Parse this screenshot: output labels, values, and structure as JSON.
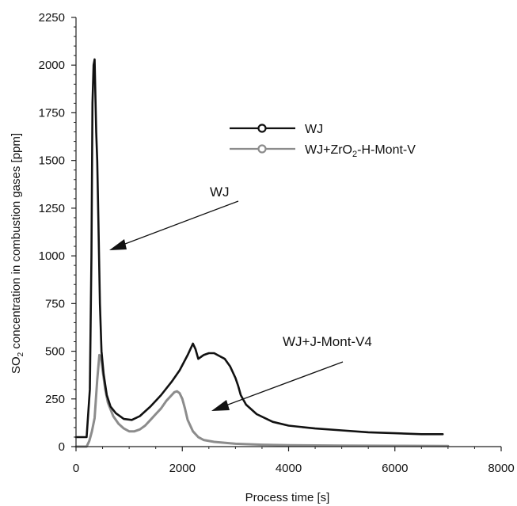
{
  "chart_data": {
    "type": "line",
    "title": "",
    "xlabel": "Process time [s]",
    "ylabel_parts": [
      "SO",
      "2",
      " concentration in combustion gases [ppm]"
    ],
    "xlim": [
      0,
      8000
    ],
    "ylim": [
      0,
      2250
    ],
    "xticks": [
      0,
      2000,
      4000,
      6000,
      8000
    ],
    "yticks": [
      0,
      250,
      500,
      750,
      1000,
      1250,
      1500,
      1750,
      2000,
      2250
    ],
    "grid": false,
    "legend_position": "top-right",
    "series": [
      {
        "name": "WJ",
        "legend_parts": [
          "WJ"
        ],
        "color": "#111111",
        "x": [
          0,
          200,
          260,
          290,
          310,
          330,
          350,
          380,
          400,
          420,
          450,
          480,
          520,
          580,
          650,
          750,
          900,
          1050,
          1200,
          1400,
          1600,
          1800,
          1950,
          2100,
          2200,
          2250,
          2300,
          2400,
          2500,
          2600,
          2700,
          2800,
          2900,
          3000,
          3050,
          3100,
          3200,
          3400,
          3700,
          4000,
          4500,
          5000,
          5500,
          6000,
          6500,
          6900
        ],
        "y": [
          50,
          50,
          300,
          1000,
          1800,
          2000,
          2030,
          1650,
          1500,
          1200,
          750,
          500,
          380,
          270,
          210,
          175,
          145,
          140,
          160,
          210,
          270,
          340,
          400,
          480,
          540,
          510,
          460,
          480,
          490,
          490,
          475,
          460,
          420,
          360,
          320,
          270,
          220,
          170,
          130,
          110,
          95,
          85,
          75,
          70,
          65,
          65
        ]
      },
      {
        "name": "WJ+ZrO2-H-Mont-V",
        "legend_parts": [
          "WJ+ZrO",
          "2",
          "-H-Mont-V"
        ],
        "color": "#8c8c8c",
        "x": [
          0,
          200,
          250,
          300,
          350,
          400,
          440,
          470,
          500,
          550,
          600,
          700,
          800,
          900,
          1000,
          1100,
          1200,
          1300,
          1400,
          1500,
          1600,
          1700,
          1800,
          1850,
          1900,
          1950,
          2000,
          2050,
          2100,
          2200,
          2300,
          2400,
          2600,
          3000,
          3500,
          4000,
          5000,
          6000,
          7000
        ],
        "y": [
          0,
          0,
          30,
          80,
          150,
          350,
          480,
          470,
          400,
          300,
          230,
          160,
          120,
          95,
          80,
          80,
          90,
          110,
          140,
          170,
          200,
          240,
          270,
          285,
          290,
          280,
          250,
          200,
          140,
          80,
          50,
          35,
          25,
          15,
          10,
          7,
          5,
          4,
          3
        ]
      }
    ],
    "annotations": [
      {
        "text": "WJ"
      },
      {
        "text": "WJ+J-Mont-V4"
      }
    ]
  }
}
